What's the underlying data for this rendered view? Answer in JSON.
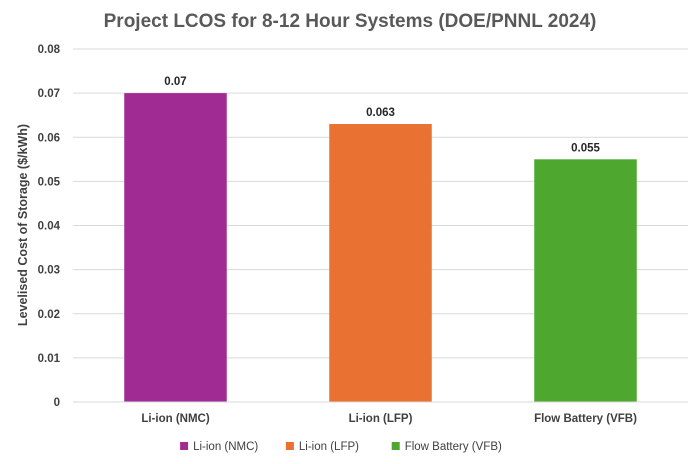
{
  "chart_data": {
    "type": "bar",
    "title": "Project LCOS for 8-12 Hour Systems (DOE/PNNL 2024)",
    "xlabel": "",
    "ylabel": "Levelised Cost of Storage ($/kWh)",
    "ylim": [
      0,
      0.08
    ],
    "yticks": [
      "0",
      "0.01",
      "0.02",
      "0.03",
      "0.04",
      "0.05",
      "0.06",
      "0.07",
      "0.08"
    ],
    "categories": [
      "Li-ion (NMC)",
      "Li-ion (LFP)",
      "Flow Battery (VFB)"
    ],
    "values": [
      0.07,
      0.063,
      0.055
    ],
    "data_labels": [
      "0.07",
      "0.063",
      "0.055"
    ],
    "colors": [
      "#A02B93",
      "#E97132",
      "#4EA72E"
    ],
    "grid": true,
    "legend": {
      "position": "bottom",
      "entries": [
        "Li-ion (NMC)",
        "Li-ion (LFP)",
        "Flow Battery (VFB)"
      ]
    }
  }
}
